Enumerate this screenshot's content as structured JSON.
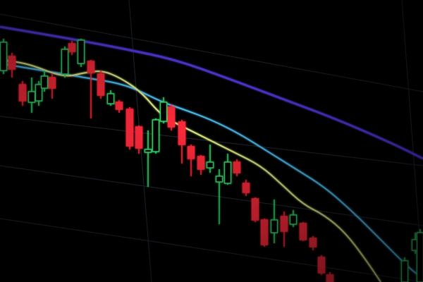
{
  "scene": {
    "subject": "candlestick-chart-on-screen",
    "colors": {
      "background": "#000000",
      "bullish": "#35d86a",
      "bearish": "#ff2a3a",
      "ma_slow": "#5a3cf0",
      "ma_mid": "#4fc3f7",
      "ma_fast": "#e6f28a",
      "grid": "#1c2530"
    }
  }
}
